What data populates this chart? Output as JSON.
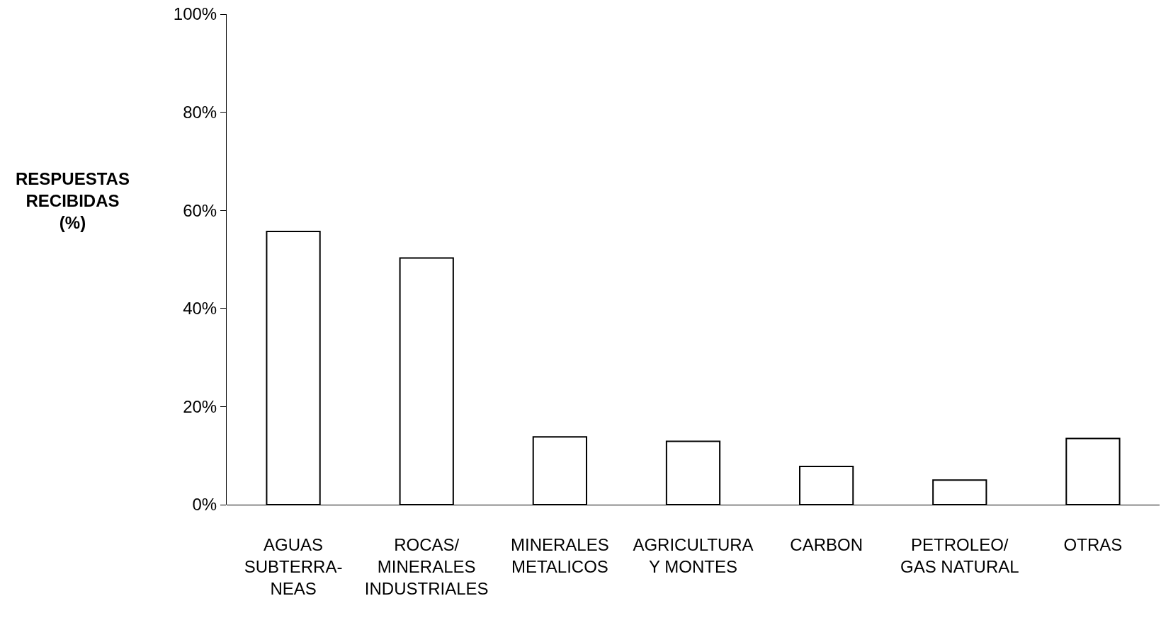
{
  "chart_data": {
    "type": "bar",
    "ylabel": "RESPUESTAS\nRECIBIDAS\n(%)",
    "categories": [
      "AGUAS\nSUBTERRA-\nNEAS",
      "ROCAS/\nMINERALES\nINDUSTRIALES",
      "MINERALES\nMETALICOS",
      "AGRICULTURA\nY MONTES",
      "CARBON",
      "PETROLEO/\nGAS NATURAL",
      "OTRAS"
    ],
    "values": [
      55.7,
      50.3,
      13.8,
      12.9,
      7.8,
      5.0,
      13.5
    ],
    "color": "#ffffff",
    "ylim": [
      0,
      100
    ],
    "yticks": [
      {
        "value": 0,
        "label": "0%"
      },
      {
        "value": 20,
        "label": "20%"
      },
      {
        "value": 40,
        "label": "40%"
      },
      {
        "value": 60,
        "label": "60%"
      },
      {
        "value": 80,
        "label": "80%"
      },
      {
        "value": 100,
        "label": "100%"
      }
    ],
    "grid": false
  }
}
